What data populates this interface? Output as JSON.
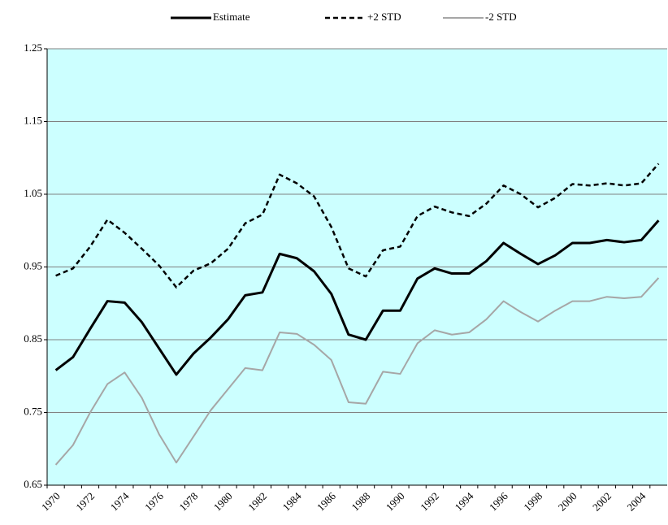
{
  "chart_data": {
    "type": "line",
    "categories": [
      "1970",
      null,
      "1972",
      null,
      "1974",
      null,
      "1976",
      null,
      "1978",
      null,
      "1980",
      null,
      "1982",
      null,
      "1984",
      null,
      "1986",
      null,
      "1988",
      null,
      "1990",
      null,
      "1992",
      null,
      "1994",
      null,
      "1996",
      null,
      "1998",
      null,
      "2000",
      null,
      "2002",
      null,
      "2004",
      null
    ],
    "series": [
      {
        "name": "Estimate",
        "color": "#000000",
        "style": "solid",
        "width": 3,
        "values": [
          0.808,
          0.826,
          0.865,
          0.903,
          0.901,
          0.874,
          0.838,
          0.802,
          0.831,
          0.853,
          0.878,
          0.911,
          0.915,
          0.968,
          0.962,
          0.944,
          0.913,
          0.857,
          0.85,
          0.89,
          0.89,
          0.934,
          0.948,
          0.941,
          0.941,
          0.958,
          0.983,
          0.968,
          0.954,
          0.966,
          0.983,
          0.983,
          0.987,
          0.984,
          0.987,
          1.014
        ]
      },
      {
        "name": "+2 STD",
        "color": "#000000",
        "style": "dashed",
        "width": 2.5,
        "values": [
          0.938,
          0.948,
          0.978,
          1.015,
          0.997,
          0.975,
          0.952,
          0.922,
          0.945,
          0.955,
          0.975,
          1.01,
          1.022,
          1.077,
          1.065,
          1.047,
          1.005,
          0.948,
          0.937,
          0.973,
          0.978,
          1.02,
          1.033,
          1.025,
          1.02,
          1.037,
          1.062,
          1.05,
          1.032,
          1.045,
          1.064,
          1.062,
          1.065,
          1.062,
          1.065,
          1.092
        ]
      },
      {
        "name": "-2 STD",
        "color": "#a6a6a6",
        "style": "solid",
        "width": 2,
        "values": [
          0.678,
          0.705,
          0.75,
          0.789,
          0.805,
          0.77,
          0.72,
          0.681,
          0.717,
          0.753,
          0.782,
          0.811,
          0.808,
          0.86,
          0.858,
          0.843,
          0.822,
          0.764,
          0.762,
          0.806,
          0.803,
          0.845,
          0.863,
          0.857,
          0.86,
          0.878,
          0.903,
          0.888,
          0.875,
          0.89,
          0.903,
          0.903,
          0.909,
          0.907,
          0.909,
          0.935
        ]
      }
    ],
    "ylim": [
      0.65,
      1.25
    ],
    "yticks": [
      0.65,
      0.75,
      0.85,
      0.95,
      1.05,
      1.15,
      1.25
    ],
    "grid": true,
    "legend": "top",
    "plot_background": "#ccffff"
  }
}
